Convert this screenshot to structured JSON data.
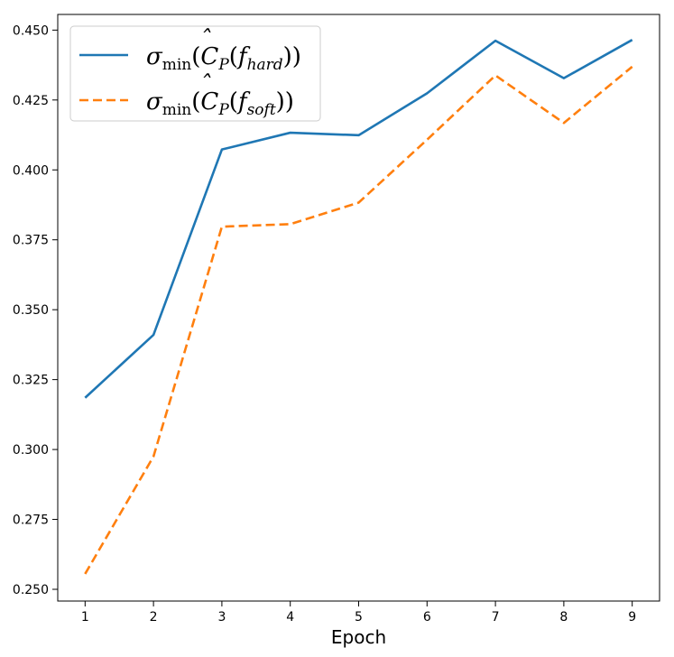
{
  "chart_data": {
    "type": "line",
    "title": "",
    "xlabel": "Epoch",
    "ylabel": "",
    "x": [
      1,
      2,
      3,
      4,
      5,
      6,
      7,
      8,
      9
    ],
    "xticks": [
      1,
      2,
      3,
      4,
      5,
      6,
      7,
      8,
      9
    ],
    "xlim": [
      0.6,
      9.4
    ],
    "ylim": [
      0.2458,
      0.4556
    ],
    "yticks": [
      0.25,
      0.275,
      0.3,
      0.325,
      0.35,
      0.375,
      0.4,
      0.425,
      0.45
    ],
    "ytick_labels": [
      "0.250",
      "0.275",
      "0.300",
      "0.325",
      "0.350",
      "0.375",
      "0.400",
      "0.425",
      "0.450"
    ],
    "grid": false,
    "legend_position": "top-left",
    "series": [
      {
        "name": "σmin(ĈP(fhard))",
        "legend": {
          "base": "σ",
          "base_sub": "min",
          "open": "(",
          "c": "C",
          "c_sub": "P",
          "paren": "(",
          "f": "f",
          "f_sub": "hard",
          "close": "))"
        },
        "color": "#1f77b4",
        "style": "solid",
        "values": [
          0.3185,
          0.341,
          0.4073,
          0.4133,
          0.4124,
          0.4274,
          0.4462,
          0.4328,
          0.4465
        ]
      },
      {
        "name": "σmin(ĈP(fsoft))",
        "legend": {
          "base": "σ",
          "base_sub": "min",
          "open": "(",
          "c": "C",
          "c_sub": "P",
          "paren": "(",
          "f": "f",
          "f_sub": "soft",
          "close": "))"
        },
        "color": "#ff7f0e",
        "style": "dashed",
        "values": [
          0.2555,
          0.2975,
          0.3797,
          0.3806,
          0.3883,
          0.4108,
          0.4338,
          0.4168,
          0.4369
        ]
      }
    ]
  }
}
